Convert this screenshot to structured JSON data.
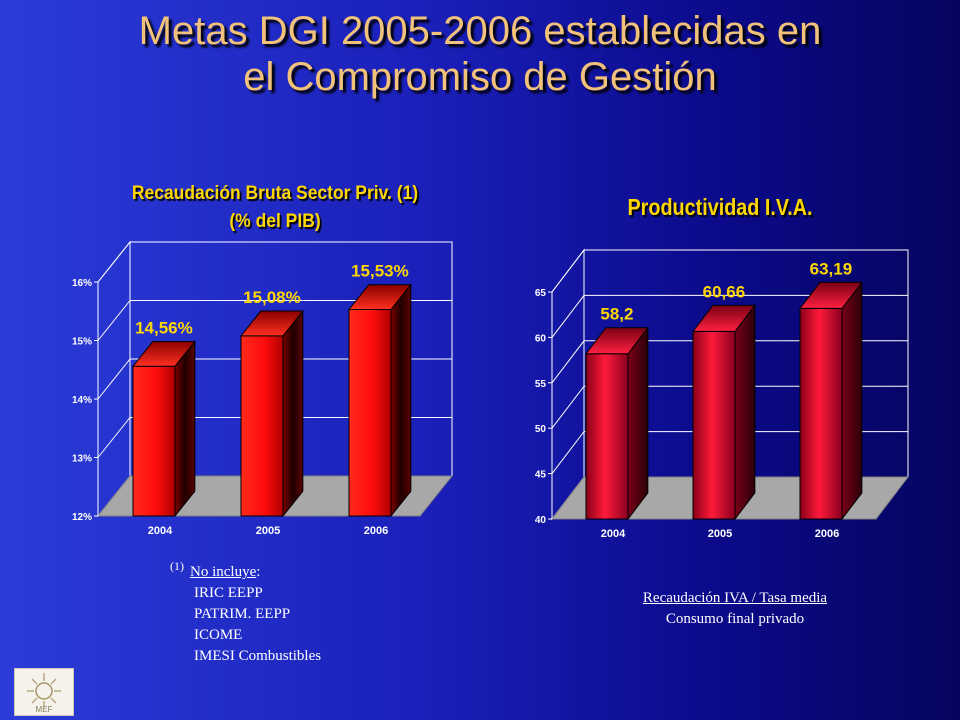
{
  "slide": {
    "title_line1": "Metas DGI 2005-2006 establecidas en",
    "title_line2": "el Compromiso de Gestión"
  },
  "chart_data": [
    {
      "type": "bar",
      "title_line1": "Recaudación Bruta Sector Priv. (1)",
      "title_line2": "(% del PIB)",
      "categories": [
        "2004",
        "2005",
        "2006"
      ],
      "values": [
        14.56,
        15.08,
        15.53
      ],
      "data_labels": [
        "14,56%",
        "15,08%",
        "15,53%"
      ],
      "ylim": [
        12,
        16
      ],
      "y_ticks": [
        "12%",
        "13%",
        "14%",
        "15%",
        "16%"
      ],
      "grid": true,
      "style": "3d"
    },
    {
      "type": "bar",
      "title": "Productividad I.V.A.",
      "categories": [
        "2004",
        "2005",
        "2006"
      ],
      "values": [
        58.2,
        60.66,
        63.19
      ],
      "data_labels": [
        "58,2",
        "60,66",
        "63,19"
      ],
      "ylim": [
        40,
        65
      ],
      "y_ticks": [
        "40",
        "45",
        "50",
        "55",
        "60",
        "65"
      ],
      "grid": true,
      "style": "3d"
    }
  ],
  "footnote": {
    "marker": "(1)",
    "heading": "No incluye",
    "heading_suffix": ":",
    "items": [
      "IRIC EEPP",
      "PATRIM. EEPP",
      "ICOME",
      "IMESI Combustibles"
    ]
  },
  "ratio": {
    "numerator": "Recaudación IVA / Tasa media",
    "denominator": "Consumo final privado"
  },
  "logo": {
    "text": "MEF",
    "icon": "sun-emblem-icon"
  },
  "colors": {
    "title": "#f2c27a",
    "chart_title": "#ffd700",
    "bar1": "#ff1010",
    "bar2": "#cc0a2a",
    "label": "#ffd700"
  }
}
